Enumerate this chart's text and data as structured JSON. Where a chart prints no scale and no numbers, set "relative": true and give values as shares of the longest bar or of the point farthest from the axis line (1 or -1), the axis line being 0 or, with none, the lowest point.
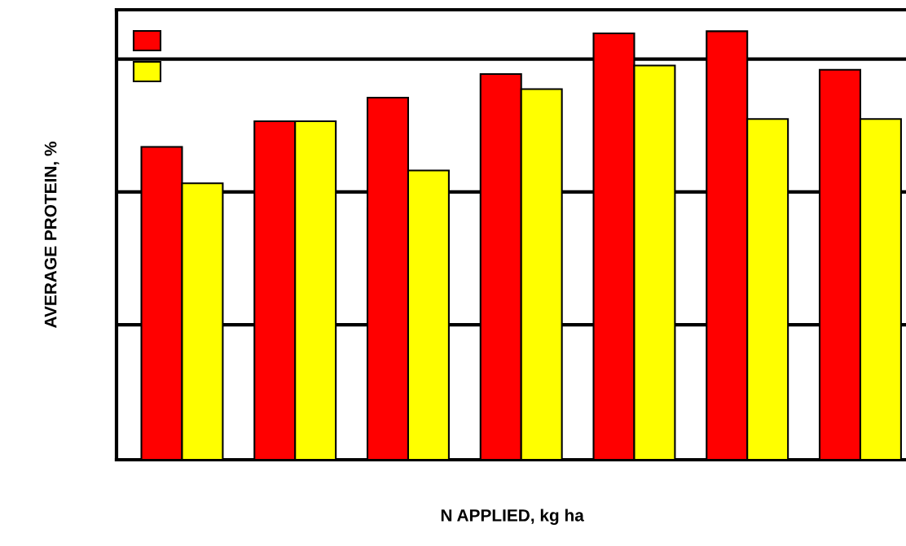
{
  "chart_data": {
    "type": "bar",
    "relative": true,
    "xlabel": "N APPLIED, kg ha",
    "ylabel": "AVERAGE PROTEIN, %",
    "categories": [
      null,
      null,
      null,
      null,
      null,
      null,
      null
    ],
    "series": [
      {
        "color": "#ff0000",
        "values": [
          0.73,
          0.79,
          0.845,
          0.9,
          0.995,
          1.0,
          0.91
        ]
      },
      {
        "color": "#ffff00",
        "values": [
          0.645,
          0.79,
          0.675,
          0.865,
          0.92,
          0.795,
          0.795
        ]
      }
    ],
    "ref_lines": [
      {
        "axis": "y",
        "value": 0.315,
        "color": "#000000"
      },
      {
        "axis": "y",
        "value": 0.625,
        "color": "#000000"
      },
      {
        "axis": "y",
        "value": 0.935,
        "color": "#000000"
      }
    ],
    "grid": false
  }
}
